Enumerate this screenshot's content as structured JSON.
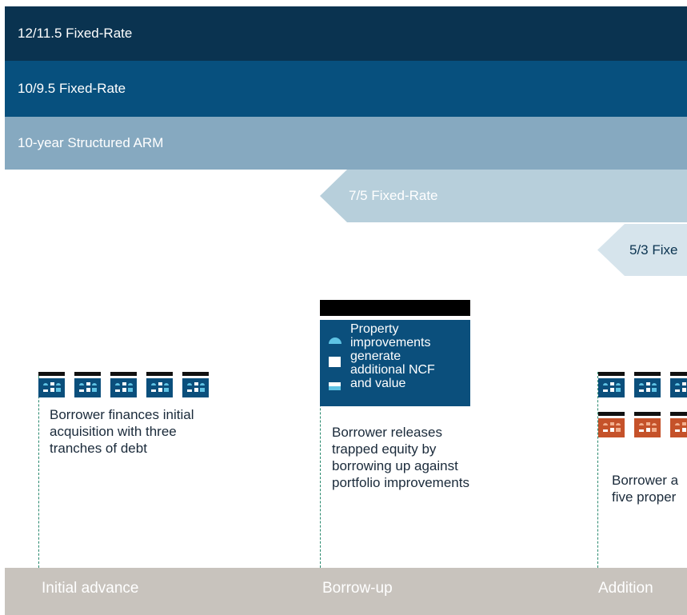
{
  "bands": [
    {
      "label": "12/11.5 Fixed-Rate"
    },
    {
      "label": "10/9.5 Fixed-Rate"
    },
    {
      "label": "10-year Structured ARM"
    },
    {
      "label": "7/5 Fixed-Rate"
    },
    {
      "label": "5/3 Fixe"
    }
  ],
  "legend": {
    "text": "Property improvements generate additional NCF and value"
  },
  "stages": [
    {
      "label": "Initial advance",
      "caption": "Borrower finances initial acquisition with three tranches of debt"
    },
    {
      "label": "Borrow-up",
      "caption": "Borrower releases trapped equity by borrowing up against portfolio improvements"
    },
    {
      "label": "Addition",
      "caption": "Borrower a five proper"
    }
  ]
}
